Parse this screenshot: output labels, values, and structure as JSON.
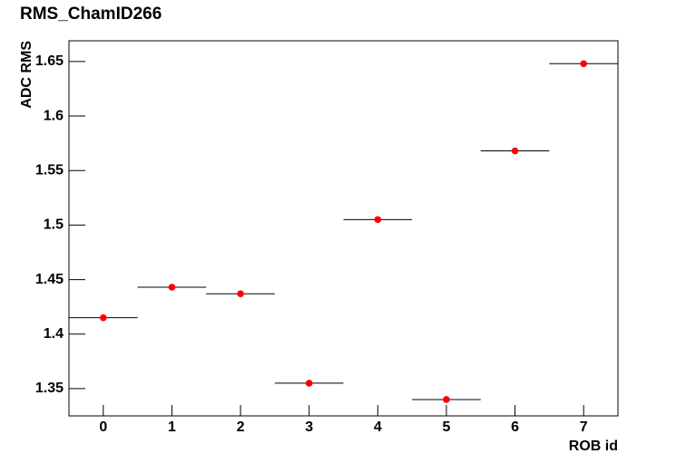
{
  "chart_data": {
    "type": "scatter",
    "title": "RMS_ChamID266",
    "x_label": "ROB id",
    "y_label": "ADC RMS",
    "x": [
      0,
      1,
      2,
      3,
      4,
      5,
      6,
      7
    ],
    "values": [
      1.415,
      1.443,
      1.437,
      1.355,
      1.505,
      1.34,
      1.568,
      1.648
    ],
    "xerr": [
      0.5,
      0.5,
      0.5,
      0.5,
      0.5,
      0.5,
      0.5,
      0.5
    ],
    "color": "#ff0000",
    "xlim": [
      -0.5,
      7.5
    ],
    "ylim": [
      1.325,
      1.669
    ],
    "xticks": [
      0,
      1,
      2,
      3,
      4,
      5,
      6,
      7
    ],
    "yticks": [
      1.35,
      1.4,
      1.45,
      1.5,
      1.55,
      1.6,
      1.65
    ]
  }
}
